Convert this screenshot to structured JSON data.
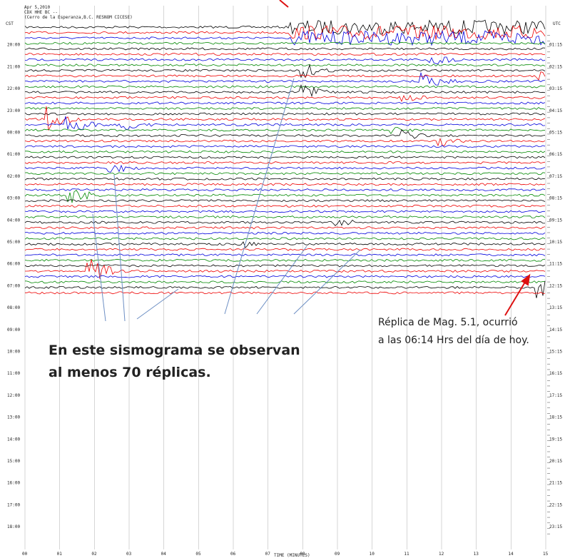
{
  "header": {
    "lines": [
      "Apr 5,2010",
      "CDX HHE BC --",
      "(Cerro de la Esperanza,B.C. RESNOM CICESE)"
    ],
    "left_zone": "CST",
    "right_zone": "UTC"
  },
  "left_times": [
    "20:00",
    "21:00",
    "22:00",
    "23:00",
    "00:00",
    "01:00",
    "02:00",
    "03:00",
    "04:00",
    "05:00",
    "06:00",
    "07:00",
    "08:00",
    "09:00",
    "10:00",
    "11:00",
    "12:00",
    "13:00",
    "14:00",
    "15:00",
    "16:00",
    "17:00",
    "18:00"
  ],
  "right_times": [
    "01:15",
    "02:15",
    "03:15",
    "04:15",
    "05:15",
    "06:15",
    "07:15",
    "08:15",
    "09:15",
    "10:15",
    "11:15",
    "12:15",
    "13:15",
    "14:15",
    "15:15",
    "16:15",
    "17:15",
    "18:15",
    "19:15",
    "20:15",
    "21:15",
    "22:15",
    "23:15"
  ],
  "minutes": [
    "00",
    "01",
    "02",
    "03",
    "04",
    "05",
    "06",
    "07",
    "08",
    "09",
    "10",
    "11",
    "12",
    "13",
    "14",
    "15"
  ],
  "x_axis_label": "TIME (MINUTES)",
  "annotations": {
    "replica": [
      "Réplica de Mag. 5.1, ocurrió",
      "a las 06:14 Hrs del día de hoy."
    ],
    "summary": [
      "En este sismograma se observan",
      "al menos 70 réplicas."
    ]
  }
}
